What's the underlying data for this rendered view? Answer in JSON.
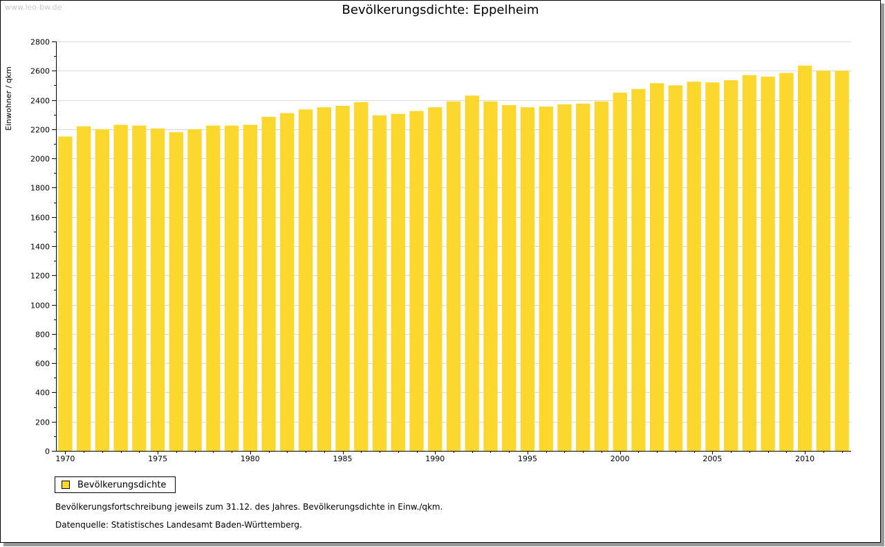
{
  "watermark": "www.leo-bw.de",
  "colors": {
    "bar": "#fcd82e",
    "grid": "#d9d9d9",
    "axis": "#000000"
  },
  "legend": {
    "label": "Bevölkerungsdichte"
  },
  "notes": {
    "line1": "Bevölkerungsfortschreibung jeweils zum 31.12. des Jahres. Bevölkerungsdichte in Einw./qkm.",
    "line2": "Datenquelle: Statistisches Landesamt Baden-Württemberg."
  },
  "chart_data": {
    "type": "bar",
    "title": "Bevölkerungsdichte: Eppelheim",
    "xlabel": "",
    "ylabel": "Einwohner / qkm",
    "ylim": [
      0,
      2800
    ],
    "yticks": [
      0,
      200,
      400,
      600,
      800,
      1000,
      1200,
      1400,
      1600,
      1800,
      2000,
      2200,
      2400,
      2600,
      2800
    ],
    "xtick_labels": [
      "1970",
      "1975",
      "1980",
      "1985",
      "1990",
      "1995",
      "2000",
      "2005",
      "2010"
    ],
    "grid": true,
    "legend_position": "bottom-left",
    "categories": [
      "1970",
      "1971",
      "1972",
      "1973",
      "1974",
      "1975",
      "1976",
      "1977",
      "1978",
      "1979",
      "1980",
      "1981",
      "1982",
      "1983",
      "1984",
      "1985",
      "1986",
      "1987",
      "1988",
      "1989",
      "1990",
      "1991",
      "1992",
      "1993",
      "1994",
      "1995",
      "1996",
      "1997",
      "1998",
      "1999",
      "2000",
      "2001",
      "2002",
      "2003",
      "2004",
      "2005",
      "2006",
      "2007",
      "2008",
      "2009",
      "2010",
      "2011",
      "2012"
    ],
    "series": [
      {
        "name": "Bevölkerungsdichte",
        "values": [
          2150,
          2220,
          2200,
          2230,
          2225,
          2205,
          2180,
          2200,
          2225,
          2225,
          2230,
          2285,
          2310,
          2335,
          2350,
          2360,
          2385,
          2295,
          2305,
          2325,
          2350,
          2390,
          2430,
          2390,
          2365,
          2350,
          2355,
          2370,
          2375,
          2390,
          2450,
          2475,
          2515,
          2500,
          2525,
          2520,
          2535,
          2570,
          2560,
          2585,
          2635,
          2600,
          2600
        ]
      }
    ]
  }
}
